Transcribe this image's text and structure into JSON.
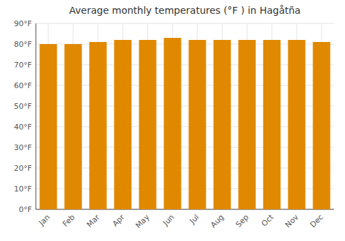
{
  "chart_data": {
    "type": "bar",
    "title": "Average monthly temperatures (°F ) in Hagåtña",
    "categories": [
      "Jan",
      "Feb",
      "Mar",
      "Apr",
      "May",
      "Jun",
      "Jul",
      "Aug",
      "Sep",
      "Oct",
      "Nov",
      "Dec"
    ],
    "values": [
      80,
      80,
      81,
      82,
      82,
      83,
      82,
      82,
      82,
      82,
      82,
      81
    ],
    "color": "#E08800",
    "ylim": [
      0,
      90
    ],
    "yticks": [
      {
        "value": 0,
        "label": "0°F"
      },
      {
        "value": 10,
        "label": "10°F"
      },
      {
        "value": 20,
        "label": "20°F"
      },
      {
        "value": 30,
        "label": "30°F"
      },
      {
        "value": 40,
        "label": "40°F"
      },
      {
        "value": 50,
        "label": "50°F"
      },
      {
        "value": 60,
        "label": "60°F"
      },
      {
        "value": 70,
        "label": "70°F"
      },
      {
        "value": 80,
        "label": "80°F"
      },
      {
        "value": 90,
        "label": "90°F"
      }
    ],
    "grid": true
  }
}
